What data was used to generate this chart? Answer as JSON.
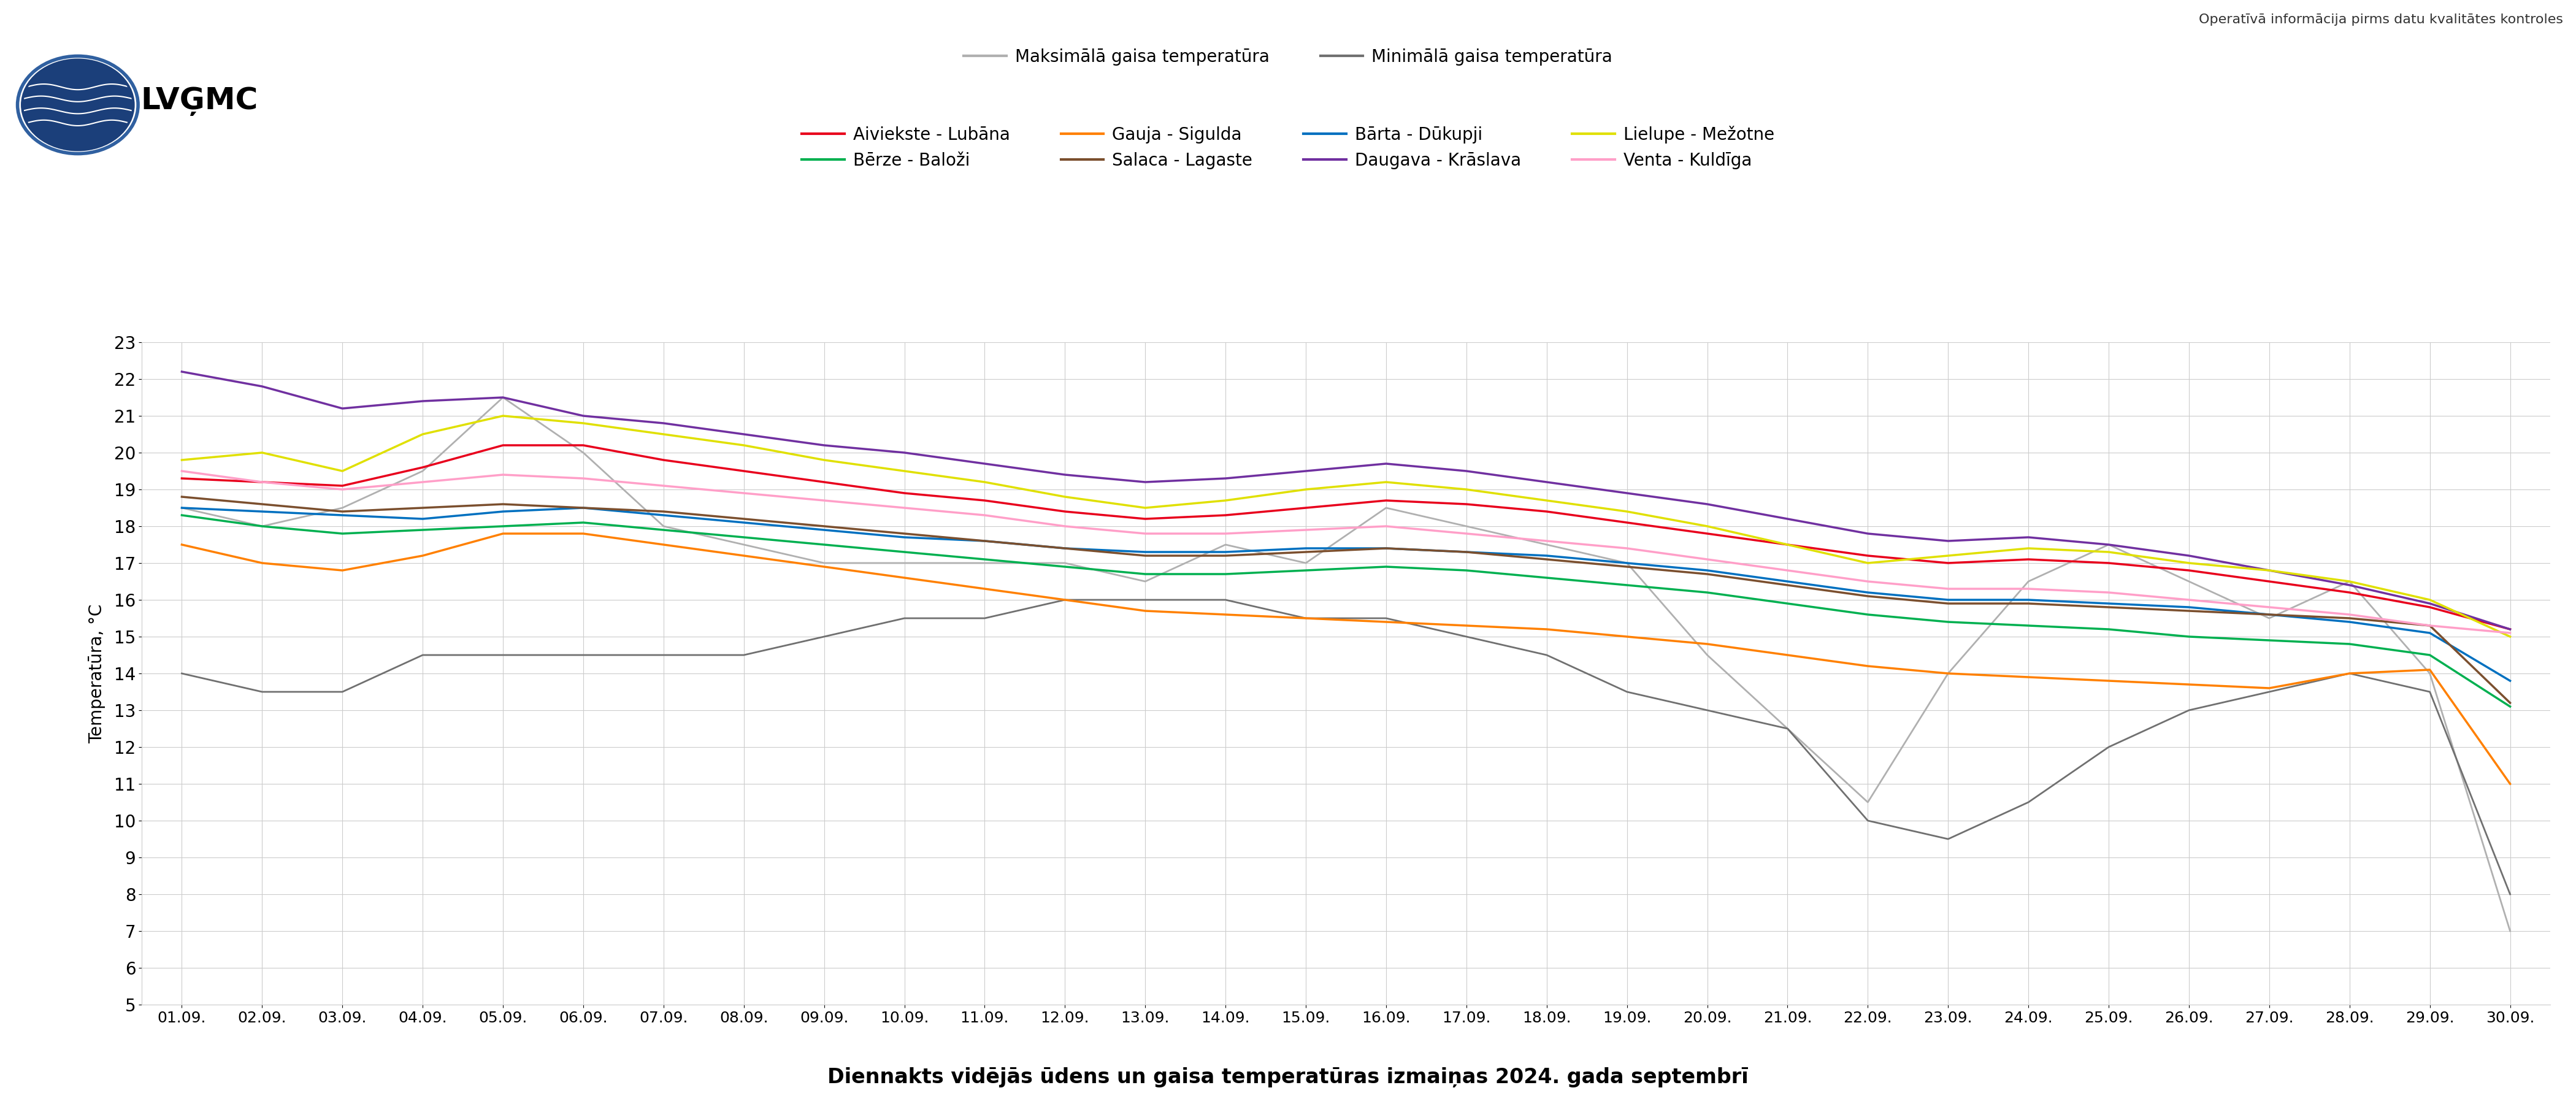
{
  "title": "Diennakts vidējās ūdens un gaisa temperatūras izmaiņas 2024. gada septembrī",
  "ylabel": "Temperatūra, °C",
  "watermark": "Operatīvā informācija pirms datu kvalitātes kontroles",
  "dates": [
    "01.09.",
    "02.09.",
    "03.09.",
    "04.09.",
    "05.09.",
    "06.09.",
    "07.09.",
    "08.09.",
    "09.09.",
    "10.09.",
    "11.09.",
    "12.09.",
    "13.09.",
    "14.09.",
    "15.09.",
    "16.09.",
    "17.09.",
    "18.09.",
    "19.09.",
    "20.09.",
    "21.09.",
    "22.09.",
    "23.09.",
    "24.09.",
    "25.09.",
    "26.09.",
    "27.09.",
    "28.09.",
    "29.09.",
    "30.09."
  ],
  "ylim": [
    5,
    23
  ],
  "yticks": [
    5,
    6,
    7,
    8,
    9,
    10,
    11,
    12,
    13,
    14,
    15,
    16,
    17,
    18,
    19,
    20,
    21,
    22,
    23
  ],
  "series": {
    "Aiviekste - Lubāna": {
      "color": "#E8001C",
      "data": [
        19.3,
        19.2,
        19.1,
        19.6,
        20.2,
        20.2,
        19.8,
        19.5,
        19.2,
        18.9,
        18.7,
        18.4,
        18.2,
        18.3,
        18.5,
        18.7,
        18.6,
        18.4,
        18.1,
        17.8,
        17.5,
        17.2,
        17.0,
        17.1,
        17.0,
        16.8,
        16.5,
        16.2,
        15.8,
        15.2
      ]
    },
    "Bārta - Dūkupji": {
      "color": "#0070C0",
      "data": [
        18.5,
        18.4,
        18.3,
        18.2,
        18.4,
        18.5,
        18.3,
        18.1,
        17.9,
        17.7,
        17.6,
        17.4,
        17.3,
        17.3,
        17.4,
        17.4,
        17.3,
        17.2,
        17.0,
        16.8,
        16.5,
        16.2,
        16.0,
        16.0,
        15.9,
        15.8,
        15.6,
        15.4,
        15.1,
        13.8
      ]
    },
    "Bērze - Baloži": {
      "color": "#00B050",
      "data": [
        18.3,
        18.0,
        17.8,
        17.9,
        18.0,
        18.1,
        17.9,
        17.7,
        17.5,
        17.3,
        17.1,
        16.9,
        16.7,
        16.7,
        16.8,
        16.9,
        16.8,
        16.6,
        16.4,
        16.2,
        15.9,
        15.6,
        15.4,
        15.3,
        15.2,
        15.0,
        14.9,
        14.8,
        14.5,
        13.1
      ]
    },
    "Daugava - Krāslava": {
      "color": "#7030A0",
      "data": [
        22.2,
        21.8,
        21.2,
        21.4,
        21.5,
        21.0,
        20.8,
        20.5,
        20.2,
        20.0,
        19.7,
        19.4,
        19.2,
        19.3,
        19.5,
        19.7,
        19.5,
        19.2,
        18.9,
        18.6,
        18.2,
        17.8,
        17.6,
        17.7,
        17.5,
        17.2,
        16.8,
        16.4,
        15.9,
        15.2
      ]
    },
    "Gauja - Sigulda": {
      "color": "#FF8000",
      "data": [
        17.5,
        17.0,
        16.8,
        17.2,
        17.8,
        17.8,
        17.5,
        17.2,
        16.9,
        16.6,
        16.3,
        16.0,
        15.7,
        15.6,
        15.5,
        15.4,
        15.3,
        15.2,
        15.0,
        14.8,
        14.5,
        14.2,
        14.0,
        13.9,
        13.8,
        13.7,
        13.6,
        14.0,
        14.1,
        11.0
      ]
    },
    "Lielupe - Mežotne": {
      "color": "#E0E000",
      "data": [
        19.8,
        20.0,
        19.5,
        20.5,
        21.0,
        20.8,
        20.5,
        20.2,
        19.8,
        19.5,
        19.2,
        18.8,
        18.5,
        18.7,
        19.0,
        19.2,
        19.0,
        18.7,
        18.4,
        18.0,
        17.5,
        17.0,
        17.2,
        17.4,
        17.3,
        17.0,
        16.8,
        16.5,
        16.0,
        15.0
      ]
    },
    "Salaca - Lagaste": {
      "color": "#7B4F2E",
      "data": [
        18.8,
        18.6,
        18.4,
        18.5,
        18.6,
        18.5,
        18.4,
        18.2,
        18.0,
        17.8,
        17.6,
        17.4,
        17.2,
        17.2,
        17.3,
        17.4,
        17.3,
        17.1,
        16.9,
        16.7,
        16.4,
        16.1,
        15.9,
        15.9,
        15.8,
        15.7,
        15.6,
        15.5,
        15.3,
        13.2
      ]
    },
    "Venta - Kuldīga": {
      "color": "#FF9FC8",
      "data": [
        19.5,
        19.2,
        19.0,
        19.2,
        19.4,
        19.3,
        19.1,
        18.9,
        18.7,
        18.5,
        18.3,
        18.0,
        17.8,
        17.8,
        17.9,
        18.0,
        17.8,
        17.6,
        17.4,
        17.1,
        16.8,
        16.5,
        16.3,
        16.3,
        16.2,
        16.0,
        15.8,
        15.6,
        15.3,
        15.1
      ]
    }
  },
  "max_air_temp": {
    "color": "#B0B0B0",
    "label": "Maksimālā gaisa temperatūra",
    "data": [
      18.5,
      18.0,
      18.5,
      19.5,
      21.5,
      20.0,
      18.0,
      17.5,
      17.0,
      17.0,
      17.0,
      17.0,
      16.5,
      17.5,
      17.0,
      18.5,
      18.0,
      17.5,
      17.0,
      14.5,
      12.5,
      10.5,
      14.0,
      16.5,
      17.5,
      16.5,
      15.5,
      16.5,
      14.0,
      7.0
    ]
  },
  "min_air_temp": {
    "color": "#707070",
    "label": "Minimālā gaisa temperatūra",
    "data": [
      14.0,
      13.5,
      13.5,
      14.5,
      14.5,
      14.5,
      14.5,
      14.5,
      15.0,
      15.5,
      15.5,
      16.0,
      16.0,
      16.0,
      15.5,
      15.5,
      15.0,
      14.5,
      13.5,
      13.0,
      12.5,
      10.0,
      9.5,
      10.5,
      12.0,
      13.0,
      13.5,
      14.0,
      13.5,
      8.0
    ]
  }
}
